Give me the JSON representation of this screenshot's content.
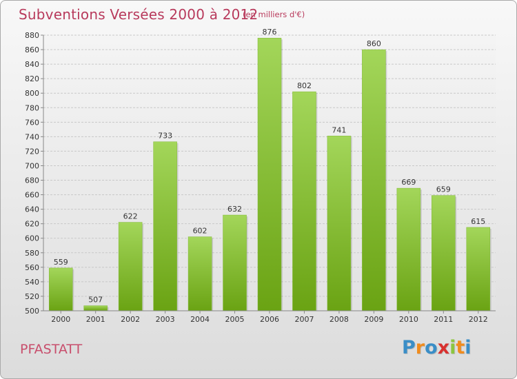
{
  "chart_data": {
    "type": "bar",
    "title": "Subventions Versées 2000 à 2012",
    "subtitle": "(en milliers d'€)",
    "categories": [
      "2000",
      "2001",
      "2002",
      "2003",
      "2004",
      "2005",
      "2006",
      "2007",
      "2008",
      "2009",
      "2010",
      "2011",
      "2012"
    ],
    "values": [
      559,
      507,
      622,
      733,
      602,
      632,
      876,
      802,
      741,
      860,
      669,
      659,
      615
    ],
    "ylim": [
      500,
      880
    ],
    "yticks": [
      500,
      520,
      540,
      560,
      580,
      600,
      620,
      640,
      660,
      680,
      700,
      720,
      740,
      760,
      780,
      800,
      820,
      840,
      860,
      880
    ],
    "grid": true,
    "bar_color": "#8cc63f"
  },
  "commune": "PFASTATT",
  "logo": {
    "letters": [
      "P",
      "r",
      "o",
      "x",
      "i",
      "t",
      "i"
    ],
    "colors": [
      "#3a8ec7",
      "#f08c1e",
      "#3a8ec7",
      "#d8312f",
      "#8cc63f",
      "#f08c1e",
      "#3a8ec7"
    ]
  }
}
